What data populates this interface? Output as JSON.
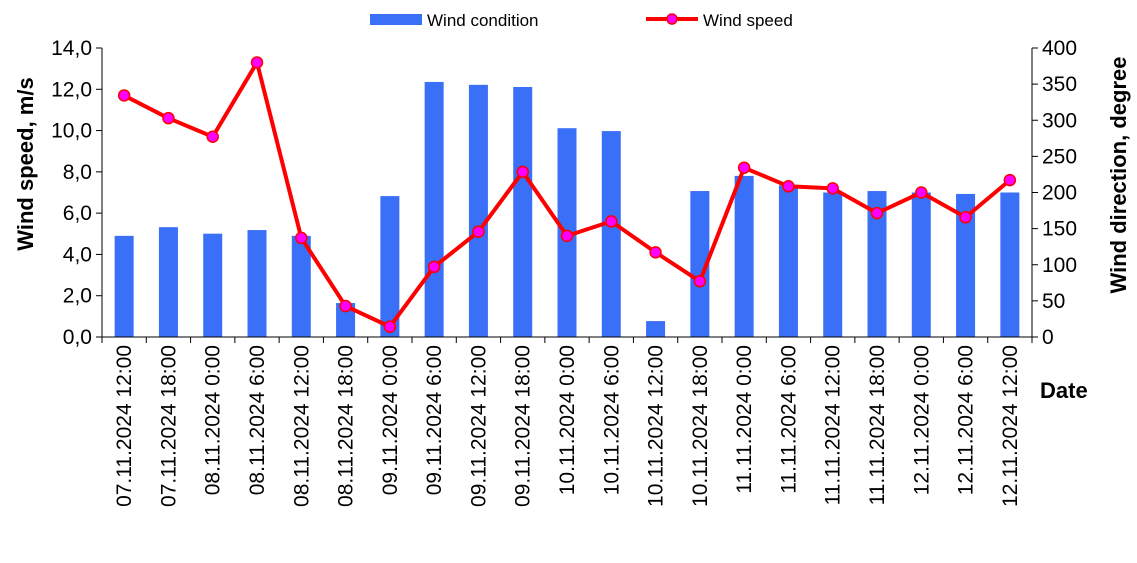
{
  "chart_data": {
    "type": "bar",
    "categories": [
      "07.11.2024 12:00",
      "07.11.2024 18:00",
      "08.11.2024 0:00",
      "08.11.2024 6:00",
      "08.11.2024 12:00",
      "08.11.2024 18:00",
      "09.11.2024 0:00",
      "09.11.2024 6:00",
      "09.11.2024 12:00",
      "09.11.2024 18:00",
      "10.11.2024 0:00",
      "10.11.2024 6:00",
      "10.11.2024 12:00",
      "10.11.2024 18:00",
      "11.11.2024 0:00",
      "11.11.2024 6:00",
      "11.11.2024 12:00",
      "11.11.2024 18:00",
      "12.11.2024 0:00",
      "12.11.2024 6:00",
      "12.11.2024 12:00"
    ],
    "series": [
      {
        "name": "Wind condition",
        "type": "bar",
        "axis": "right",
        "color": "#3a6ff7",
        "values": [
          140,
          152,
          143,
          148,
          140,
          47,
          195,
          353,
          349,
          346,
          289,
          285,
          22,
          202,
          223,
          210,
          200,
          202,
          200,
          198,
          200
        ]
      },
      {
        "name": "Wind speed",
        "type": "line",
        "axis": "left",
        "color": "#ff0000",
        "marker_color": "#ff00ff",
        "values": [
          11.7,
          10.6,
          9.7,
          13.3,
          4.8,
          1.5,
          0.5,
          3.4,
          5.1,
          8.0,
          4.9,
          5.6,
          4.1,
          2.7,
          8.2,
          7.3,
          7.2,
          6.0,
          7.0,
          5.8,
          7.6
        ]
      }
    ],
    "ylabel": "Wind speed, m/s",
    "y2label": "Wind direction, degree",
    "xlabel": "Date",
    "ylim": [
      0,
      14
    ],
    "y2lim": [
      0,
      400
    ],
    "yticks": [
      "0,0",
      "2,0",
      "4,0",
      "6,0",
      "8,0",
      "10,0",
      "12,0",
      "14,0"
    ],
    "y2ticks": [
      "0",
      "50",
      "100",
      "150",
      "200",
      "250",
      "300",
      "350",
      "400"
    ],
    "grid": false,
    "legend_position": "top"
  }
}
